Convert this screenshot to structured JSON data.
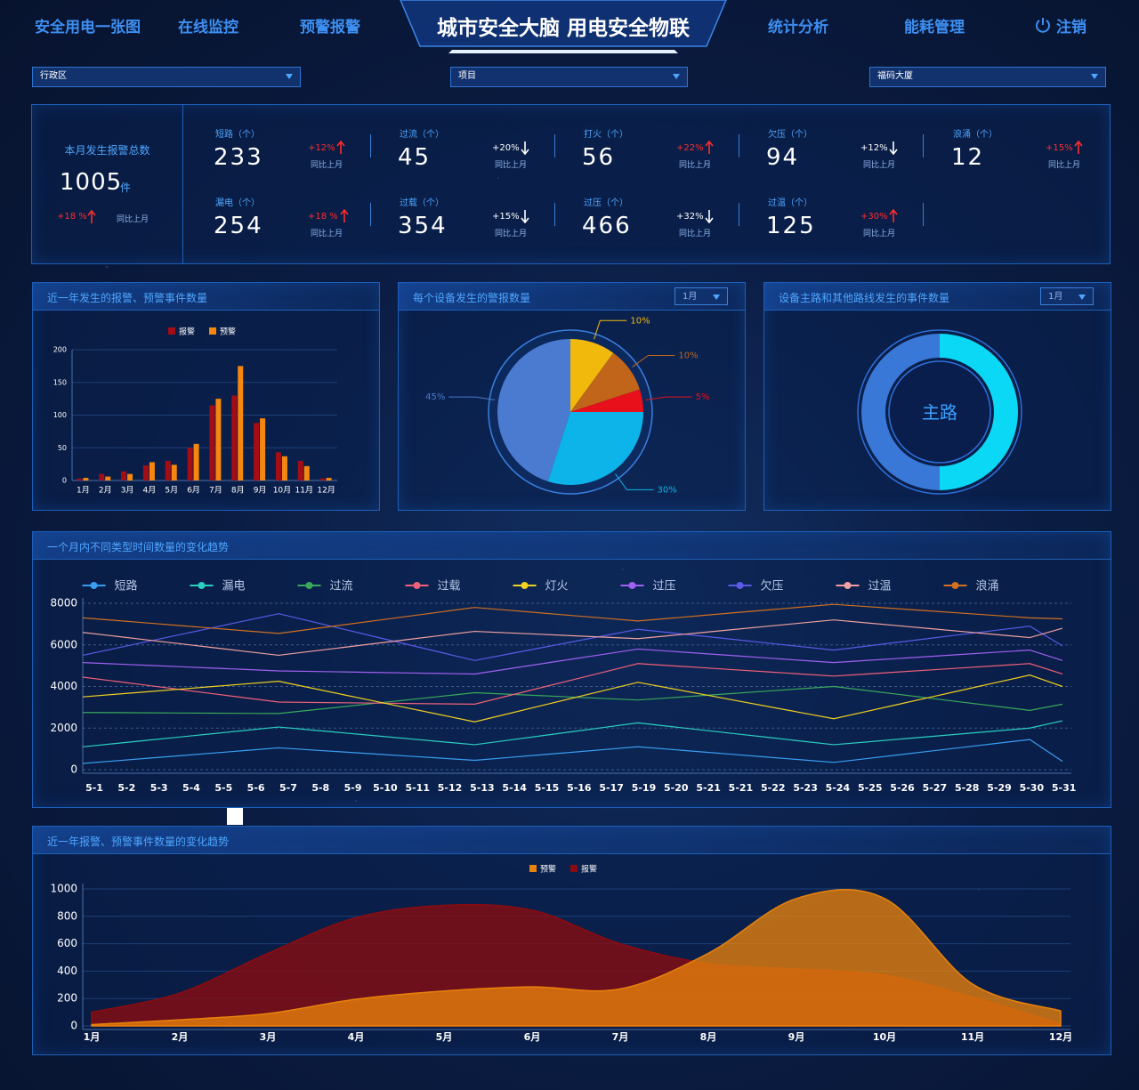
{
  "nav": {
    "left": [
      "安全用电一张图",
      "在线监控",
      "预警报警"
    ],
    "title": "城市安全大脑 用电安全物联",
    "right": [
      "统计分析",
      "能耗管理",
      "注销"
    ]
  },
  "filters": [
    "行政区",
    "项目",
    "福码大厦"
  ],
  "summary": {
    "label": "本月发生报警总数",
    "value": 1005,
    "unit": "件",
    "change": "+18 %",
    "direction": "up",
    "compare": "同比上月"
  },
  "stats": [
    {
      "label": "短路（个）",
      "value": 233,
      "change": "+12%",
      "direction": "up",
      "compare": "同比上月"
    },
    {
      "label": "过流（个）",
      "value": 45,
      "change": "+20%",
      "direction": "down",
      "compare": "同比上月"
    },
    {
      "label": "打火（个）",
      "value": 56,
      "change": "+22%",
      "direction": "up",
      "compare": "同比上月"
    },
    {
      "label": "欠压（个）",
      "value": 94,
      "change": "+12%",
      "direction": "down",
      "compare": "同比上月"
    },
    {
      "label": "浪涌（个）",
      "value": 12,
      "change": "+15%",
      "direction": "up",
      "compare": "同比上月"
    },
    {
      "label": "漏电（个）",
      "value": 254,
      "change": "+18 %",
      "direction": "up",
      "compare": "同比上月"
    },
    {
      "label": "过载（个）",
      "value": 354,
      "change": "+15%",
      "direction": "down",
      "compare": "同比上月"
    },
    {
      "label": "过压（个）",
      "value": 466,
      "change": "+32%",
      "direction": "down",
      "compare": "同比上月"
    },
    {
      "label": "过温（个）",
      "value": 125,
      "change": "+30%",
      "direction": "up",
      "compare": "同比上月"
    }
  ],
  "chart_data": [
    {
      "type": "bar",
      "title": "近一年发生的报警、预警事件数量",
      "categories": [
        "1月",
        "2月",
        "3月",
        "4月",
        "5月",
        "6月",
        "7月",
        "8月",
        "9月",
        "10月",
        "11月",
        "12月"
      ],
      "series": [
        {
          "name": "报警",
          "color": "#a50d15",
          "values": [
            3,
            10,
            14,
            23,
            30,
            50,
            115,
            130,
            88,
            43,
            30,
            3
          ]
        },
        {
          "name": "预警",
          "color": "#f5870f",
          "values": [
            4,
            6,
            10,
            28,
            24,
            56,
            125,
            175,
            95,
            37,
            22,
            4
          ]
        }
      ],
      "ylim": [
        0,
        200
      ],
      "yticks": [
        0,
        50,
        100,
        150,
        200
      ],
      "grid": true,
      "legend": "top"
    },
    {
      "type": "pie",
      "title": "每个设备发生的警报数量",
      "dropdown": "1月",
      "values": [
        10,
        10,
        5,
        30,
        45
      ],
      "value_labels": [
        "10%",
        "10%",
        "5%",
        "30%",
        "45%"
      ],
      "colors": [
        "#f0b90b",
        "#c0651a",
        "#e8101a",
        "#0cb4ea",
        "#4a7bd0"
      ]
    },
    {
      "type": "donut",
      "title": "设备主路和其他路线发生的事件数量",
      "dropdown": "1月",
      "center_label": "主路",
      "values": [
        50,
        50
      ],
      "colors": [
        "#0ad8f5",
        "#3a78d8"
      ]
    },
    {
      "type": "line",
      "title": "一个月内不同类型时间数量的变化趋势",
      "categories": [
        "5-1",
        "5-2",
        "5-3",
        "5-4",
        "5-5",
        "5-6",
        "5-7",
        "5-8",
        "5-9",
        "5-10",
        "5-11",
        "5-12",
        "5-13",
        "5-14",
        "5-15",
        "5-16",
        "5-17",
        "5-19",
        "5-20",
        "5-21",
        "5-21",
        "5-22",
        "5-23",
        "5-24",
        "5-25",
        "5-26",
        "5-27",
        "5-28",
        "5-29",
        "5-30",
        "5-31"
      ],
      "series": [
        {
          "name": "短路",
          "color": "#3a9ef0",
          "values": [
            300,
            425,
            550,
            675,
            800,
            925,
            1050,
            950,
            850,
            750,
            650,
            550,
            450,
            580,
            710,
            840,
            970,
            1100,
            975,
            850,
            725,
            600,
            475,
            350,
            533,
            717,
            900,
            1083,
            1267,
            1450,
            400
          ]
        },
        {
          "name": "漏电",
          "color": "#2bcfc0",
          "values": [
            1100,
            1258,
            1417,
            1575,
            1733,
            1892,
            2050,
            1908,
            1767,
            1625,
            1483,
            1342,
            1200,
            1410,
            1620,
            1830,
            2040,
            2250,
            2075,
            1900,
            1725,
            1550,
            1375,
            1200,
            1333,
            1467,
            1600,
            1733,
            1867,
            2000,
            2350
          ]
        },
        {
          "name": "过流",
          "color": "#3aa85a",
          "values": [
            2750,
            2742,
            2733,
            2725,
            2717,
            2708,
            2700,
            2867,
            3033,
            3200,
            3367,
            3533,
            3700,
            3630,
            3560,
            3490,
            3420,
            3350,
            3458,
            3567,
            3675,
            3783,
            3892,
            4000,
            3808,
            3617,
            3425,
            3233,
            3042,
            2850,
            3150
          ]
        },
        {
          "name": "过载",
          "color": "#f0607a",
          "values": [
            4450,
            4250,
            4050,
            3850,
            3650,
            3450,
            3250,
            3233,
            3217,
            3200,
            3183,
            3167,
            3150,
            3540,
            3930,
            4320,
            4710,
            5100,
            5000,
            4900,
            4800,
            4700,
            4600,
            4500,
            4600,
            4700,
            4800,
            4900,
            5000,
            5100,
            4600
          ]
        },
        {
          "name": "灯火",
          "color": "#f0d020",
          "values": [
            3500,
            3625,
            3750,
            3875,
            4000,
            4125,
            4250,
            3925,
            3600,
            3275,
            2950,
            2625,
            2300,
            2680,
            3060,
            3440,
            3820,
            4200,
            3908,
            3617,
            3325,
            3033,
            2742,
            2450,
            2800,
            3150,
            3500,
            3850,
            4200,
            4550,
            4000
          ]
        },
        {
          "name": "过压",
          "color": "#a060f0",
          "values": [
            5150,
            5083,
            5017,
            4950,
            4883,
            4817,
            4750,
            4725,
            4700,
            4675,
            4650,
            4625,
            4600,
            4840,
            5080,
            5320,
            5560,
            5800,
            5692,
            5583,
            5475,
            5367,
            5258,
            5150,
            5250,
            5350,
            5450,
            5550,
            5650,
            5750,
            5250
          ]
        },
        {
          "name": "欠压",
          "color": "#5a5ae6",
          "values": [
            5500,
            5833,
            6167,
            6500,
            6833,
            7167,
            7500,
            7125,
            6750,
            6375,
            6000,
            5625,
            5250,
            5550,
            5850,
            6150,
            6450,
            6750,
            6583,
            6417,
            6250,
            6083,
            5917,
            5750,
            5942,
            6133,
            6325,
            6517,
            6708,
            6900,
            5950
          ]
        },
        {
          "name": "过温",
          "color": "#f0a0a0",
          "values": [
            6600,
            6417,
            6233,
            6050,
            5867,
            5683,
            5500,
            5692,
            5883,
            6075,
            6267,
            6458,
            6650,
            6580,
            6510,
            6440,
            6370,
            6300,
            6450,
            6600,
            6750,
            6900,
            7050,
            7200,
            7058,
            6917,
            6775,
            6633,
            6492,
            6350,
            6800
          ]
        },
        {
          "name": "浪涌",
          "color": "#d07020",
          "values": [
            7300,
            7175,
            7050,
            6925,
            6800,
            6675,
            6550,
            6758,
            6967,
            7175,
            7383,
            7592,
            7800,
            7670,
            7540,
            7410,
            7280,
            7150,
            7283,
            7417,
            7550,
            7683,
            7817,
            7950,
            7842,
            7733,
            7625,
            7517,
            7408,
            7300,
            7250
          ]
        }
      ],
      "ylim": [
        0,
        8000
      ],
      "yticks": [
        0,
        2000,
        4000,
        6000,
        8000
      ],
      "grid": true,
      "legend": "top"
    },
    {
      "type": "area",
      "title": "近一年报警、预警事件数量的变化趋势",
      "categories": [
        "1月",
        "2月",
        "3月",
        "4月",
        "5月",
        "6月",
        "7月",
        "8月",
        "9月",
        "10月",
        "11月",
        "12月"
      ],
      "series": [
        {
          "name": "预警",
          "color": "#e8820c",
          "values": [
            10,
            45,
            90,
            195,
            255,
            285,
            270,
            530,
            930,
            930,
            305,
            110
          ]
        },
        {
          "name": "报警",
          "color": "#8a0c10",
          "values": [
            100,
            240,
            530,
            790,
            880,
            845,
            600,
            455,
            415,
            370,
            210,
            15
          ]
        }
      ],
      "ylim": [
        0,
        1000
      ],
      "yticks": [
        0,
        200,
        400,
        600,
        800,
        1000
      ],
      "grid": true,
      "legend": "top"
    }
  ]
}
